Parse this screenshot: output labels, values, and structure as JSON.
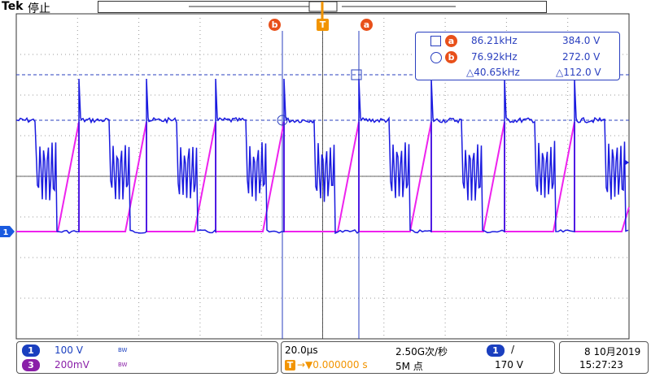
{
  "header": {
    "brand": "Tek",
    "status": "停止"
  },
  "cursors": {
    "b": "b",
    "trigger": "T",
    "a": "a"
  },
  "readout": {
    "a_freq": "86.21kHz",
    "a_volt": "384.0 V",
    "b_freq": "76.92kHz",
    "b_volt": "272.0 V",
    "delta_freq": "△40.65kHz",
    "delta_volt": "△112.0 V"
  },
  "channel_marker": "1",
  "footer": {
    "ch1": {
      "label": "1",
      "scale": "100 V",
      "bw": "BW"
    },
    "ch3": {
      "label": "3",
      "scale": "200mV",
      "bw": "BW"
    },
    "timebase": "20.0µs",
    "sample_rate": "2.50G次/秒",
    "trigger_position": "→▼0.000000 s",
    "record_length": "5M 点",
    "trigger_source": "1",
    "trigger_slope": "/",
    "trigger_level": "170 V",
    "date": "8 10月2019",
    "time": "15:27:23"
  }
}
